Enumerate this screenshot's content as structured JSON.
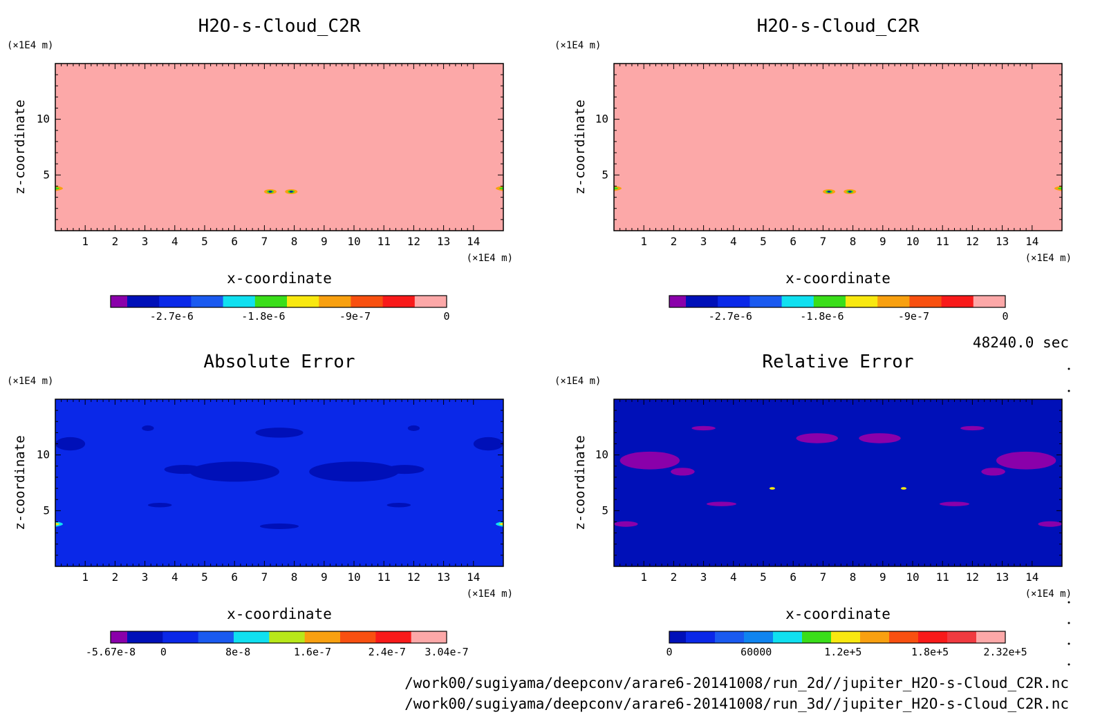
{
  "colors": {
    "c_purple": "#8a00aa",
    "c_navy": "#0010b8",
    "c_blue": "#0a28e8",
    "c_royal": "#1a5af0",
    "c_azure": "#0f84f0",
    "c_cyan": "#10e0f0",
    "c_green": "#3ade1a",
    "c_yellowgreen": "#b8e81a",
    "c_yellow": "#f8e810",
    "c_orange": "#f8a010",
    "c_redorange": "#f85010",
    "c_red": "#f81a1a",
    "c_pinkred": "#f03a40",
    "c_pink": "#fca8a8"
  },
  "chart_data": [
    {
      "type": "heatmap",
      "title": "H2O-s-Cloud_C2R",
      "xlabel": "x-coordinate",
      "ylabel": "z-coordinate",
      "x_unit": "(×1E4 m)",
      "y_unit": "(×1E4 m)",
      "x_ticks": [
        "1",
        "2",
        "3",
        "4",
        "5",
        "6",
        "7",
        "8",
        "9",
        "10",
        "11",
        "12",
        "13",
        "14"
      ],
      "y_ticks": [
        "5",
        "10"
      ],
      "xlim": [
        0,
        15
      ],
      "ylim": [
        0,
        15
      ],
      "field_color": "c_pink",
      "colorbar": {
        "colors": [
          "c_purple",
          "c_navy",
          "c_blue",
          "c_royal",
          "c_cyan",
          "c_green",
          "c_yellow",
          "c_orange",
          "c_redorange",
          "c_red",
          "c_pink"
        ],
        "tick_labels": [
          "-2.7e-6",
          "-1.8e-6",
          "-9e-7",
          "0"
        ],
        "tick_values": [
          -2.7e-06,
          -1.8e-06,
          -9e-07,
          0
        ],
        "range": [
          -3.3e-06,
          0
        ]
      },
      "features": [
        {
          "kind": "edge-left",
          "x": 0.0,
          "z": 3.8
        },
        {
          "kind": "blob",
          "x": 7.2,
          "z": 3.5
        },
        {
          "kind": "blob",
          "x": 7.9,
          "z": 3.5
        },
        {
          "kind": "edge-right",
          "x": 15.0,
          "z": 3.8
        }
      ]
    },
    {
      "type": "heatmap",
      "title": "H2O-s-Cloud_C2R",
      "xlabel": "x-coordinate",
      "ylabel": "z-coordinate",
      "x_unit": "(×1E4 m)",
      "y_unit": "(×1E4 m)",
      "x_ticks": [
        "1",
        "2",
        "3",
        "4",
        "5",
        "6",
        "7",
        "8",
        "9",
        "10",
        "11",
        "12",
        "13",
        "14"
      ],
      "y_ticks": [
        "5",
        "10"
      ],
      "xlim": [
        0,
        15
      ],
      "ylim": [
        0,
        15
      ],
      "field_color": "c_pink",
      "colorbar": {
        "colors": [
          "c_purple",
          "c_navy",
          "c_blue",
          "c_royal",
          "c_cyan",
          "c_green",
          "c_yellow",
          "c_orange",
          "c_redorange",
          "c_red",
          "c_pink"
        ],
        "tick_labels": [
          "-2.7e-6",
          "-1.8e-6",
          "-9e-7",
          "0"
        ],
        "tick_values": [
          -2.7e-06,
          -1.8e-06,
          -9e-07,
          0
        ],
        "range": [
          -3.3e-06,
          0
        ]
      },
      "features": [
        {
          "kind": "edge-left",
          "x": 0.0,
          "z": 3.8
        },
        {
          "kind": "blob",
          "x": 7.2,
          "z": 3.5
        },
        {
          "kind": "blob",
          "x": 7.9,
          "z": 3.5
        },
        {
          "kind": "edge-right",
          "x": 15.0,
          "z": 3.8
        }
      ]
    },
    {
      "type": "heatmap",
      "title": "Absolute Error",
      "xlabel": "x-coordinate",
      "ylabel": "z-coordinate",
      "x_unit": "(×1E4 m)",
      "y_unit": "(×1E4 m)",
      "x_ticks": [
        "1",
        "2",
        "3",
        "4",
        "5",
        "6",
        "7",
        "8",
        "9",
        "10",
        "11",
        "12",
        "13",
        "14"
      ],
      "y_ticks": [
        "5",
        "10"
      ],
      "xlim": [
        0,
        15
      ],
      "ylim": [
        0,
        15
      ],
      "field_color": "c_blue",
      "colorbar": {
        "colors": [
          "c_purple",
          "c_navy",
          "c_blue",
          "c_royal",
          "c_cyan",
          "c_yellowgreen",
          "c_orange",
          "c_redorange",
          "c_red",
          "c_pink"
        ],
        "tick_labels": [
          "-5.67e-8",
          "0",
          "8e-8",
          "1.6e-7",
          "2.4e-7",
          "3.04e-7"
        ],
        "tick_values": [
          -5.67e-08,
          0,
          8e-08,
          1.6e-07,
          2.4e-07,
          3.04e-07
        ],
        "range": [
          -5.67e-08,
          3.04e-07
        ]
      },
      "features": [
        {
          "kind": "patch",
          "x": 6.0,
          "z": 8.5,
          "w": 3.0,
          "h": 1.8
        },
        {
          "kind": "patch",
          "x": 10.0,
          "z": 8.5,
          "w": 3.0,
          "h": 1.8
        },
        {
          "kind": "patch",
          "x": 4.3,
          "z": 8.7,
          "w": 1.3,
          "h": 0.8
        },
        {
          "kind": "patch",
          "x": 11.7,
          "z": 8.7,
          "w": 1.3,
          "h": 0.8
        },
        {
          "kind": "patch",
          "x": 7.5,
          "z": 12.0,
          "w": 1.6,
          "h": 0.9
        },
        {
          "kind": "patch",
          "x": 0.5,
          "z": 11.0,
          "w": 1.0,
          "h": 1.2
        },
        {
          "kind": "patch",
          "x": 14.5,
          "z": 11.0,
          "w": 1.0,
          "h": 1.2
        },
        {
          "kind": "patch",
          "x": 3.1,
          "z": 12.4,
          "w": 0.4,
          "h": 0.5
        },
        {
          "kind": "patch",
          "x": 12.0,
          "z": 12.4,
          "w": 0.4,
          "h": 0.5
        },
        {
          "kind": "patch",
          "x": 7.5,
          "z": 3.6,
          "w": 1.3,
          "h": 0.5
        },
        {
          "kind": "patch",
          "x": 3.5,
          "z": 5.5,
          "w": 0.8,
          "h": 0.4
        },
        {
          "kind": "patch",
          "x": 11.5,
          "z": 5.5,
          "w": 0.8,
          "h": 0.4
        },
        {
          "kind": "edge-left",
          "x": 0.0,
          "z": 3.8
        },
        {
          "kind": "edge-right",
          "x": 15.0,
          "z": 3.8
        }
      ]
    },
    {
      "type": "heatmap",
      "title": "Relative Error",
      "xlabel": "x-coordinate",
      "ylabel": "z-coordinate",
      "x_unit": "(×1E4 m)",
      "y_unit": "(×1E4 m)",
      "x_ticks": [
        "1",
        "2",
        "3",
        "4",
        "5",
        "6",
        "7",
        "8",
        "9",
        "10",
        "11",
        "12",
        "13",
        "14"
      ],
      "y_ticks": [
        "5",
        "10"
      ],
      "xlim": [
        0,
        15
      ],
      "ylim": [
        0,
        15
      ],
      "field_color": "c_navy",
      "colorbar": {
        "colors": [
          "c_navy",
          "c_blue",
          "c_royal",
          "c_azure",
          "c_cyan",
          "c_green",
          "c_yellow",
          "c_orange",
          "c_redorange",
          "c_red",
          "c_pinkred",
          "c_pink"
        ],
        "tick_labels": [
          "0",
          "60000",
          "1.2e+5",
          "1.8e+5",
          "2.32e+5"
        ],
        "tick_values": [
          0,
          60000,
          120000,
          180000,
          232000
        ],
        "range": [
          0,
          232000
        ]
      },
      "features": [
        {
          "kind": "patch",
          "x": 1.2,
          "z": 9.5,
          "w": 2.0,
          "h": 1.6
        },
        {
          "kind": "patch",
          "x": 13.8,
          "z": 9.5,
          "w": 2.0,
          "h": 1.6
        },
        {
          "kind": "patch",
          "x": 2.3,
          "z": 8.5,
          "w": 0.8,
          "h": 0.7
        },
        {
          "kind": "patch",
          "x": 12.7,
          "z": 8.5,
          "w": 0.8,
          "h": 0.7
        },
        {
          "kind": "patch",
          "x": 6.8,
          "z": 11.5,
          "w": 1.4,
          "h": 0.9
        },
        {
          "kind": "patch",
          "x": 8.9,
          "z": 11.5,
          "w": 1.4,
          "h": 0.9
        },
        {
          "kind": "patch",
          "x": 3.0,
          "z": 12.4,
          "w": 0.8,
          "h": 0.4
        },
        {
          "kind": "patch",
          "x": 12.0,
          "z": 12.4,
          "w": 0.8,
          "h": 0.4
        },
        {
          "kind": "patch",
          "x": 3.6,
          "z": 5.6,
          "w": 1.0,
          "h": 0.4
        },
        {
          "kind": "patch",
          "x": 11.4,
          "z": 5.6,
          "w": 1.0,
          "h": 0.4
        },
        {
          "kind": "patch",
          "x": 0.4,
          "z": 3.8,
          "w": 0.8,
          "h": 0.5
        },
        {
          "kind": "patch",
          "x": 14.6,
          "z": 3.8,
          "w": 0.8,
          "h": 0.5
        },
        {
          "kind": "speck",
          "x": 5.3,
          "z": 7.0
        },
        {
          "kind": "speck",
          "x": 9.7,
          "z": 7.0
        }
      ]
    }
  ],
  "timestamp": "48240.0 sec",
  "file_paths": [
    "/work00/sugiyama/deepconv/arare6-20141008/run_2d//jupiter_H2O-s-Cloud_C2R.nc",
    "/work00/sugiyama/deepconv/arare6-20141008/run_3d//jupiter_H2O-s-Cloud_C2R.nc"
  ]
}
